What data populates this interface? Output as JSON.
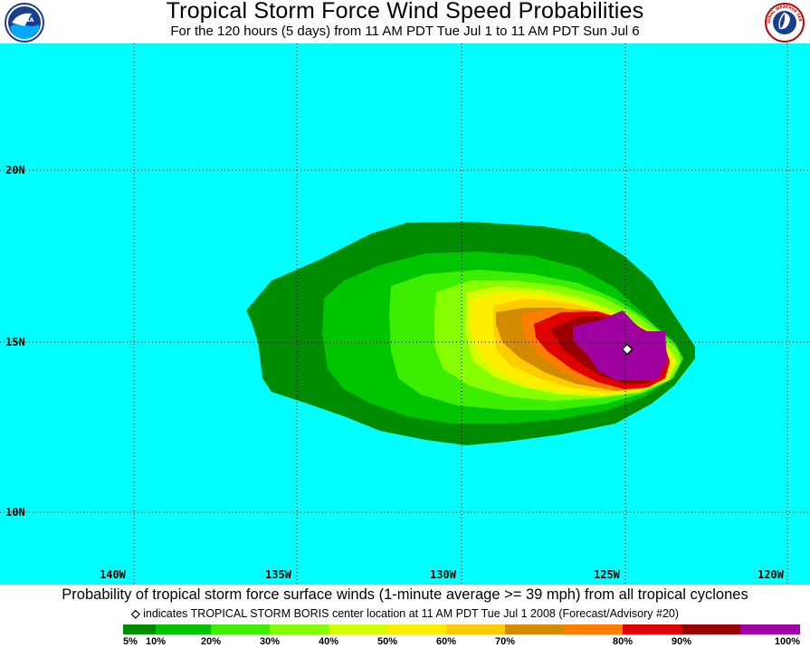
{
  "header": {
    "title": "Tropical Storm Force Wind Speed Probabilities",
    "subtitle": "For the 120 hours (5 days) from 11 AM PDT Tue Jul 1 to 11 AM PDT Sun Jul 6",
    "left_logo_text": "NOAA",
    "right_logo_text": "NATIONAL WEATHER SERVICE"
  },
  "map": {
    "ocean_color": "#00ffff",
    "latitude_labels": [
      "20N",
      "15N",
      "10N"
    ],
    "longitude_labels": [
      "140W",
      "135W",
      "130W",
      "125W",
      "120W"
    ],
    "storm_center": {
      "lon": -124.8,
      "lat": 14.8,
      "marker": "diamond"
    }
  },
  "footer": {
    "main": "Probability of tropical storm force surface winds (1-minute average >= 39 mph) from all tropical cyclones",
    "marker_symbol": "◇",
    "note": "indicates TROPICAL STORM BORIS center location at 11 AM PDT Tue Jul 1 2008 (Forecast/Advisory #20)"
  },
  "legend": {
    "colors": [
      "#008c00",
      "#00c400",
      "#3cee00",
      "#86ff00",
      "#d4ff00",
      "#ffee00",
      "#ffcc00",
      "#d28a00",
      "#ff7d00",
      "#e00000",
      "#9a0000",
      "#a000a0"
    ],
    "swatch_edges": [
      0,
      36,
      97,
      162,
      227,
      292,
      357,
      422,
      487,
      552,
      617,
      682,
      748
    ],
    "labels": [
      "5%",
      "10%",
      "20%",
      "30%",
      "40%",
      "50%",
      "60%",
      "70%",
      "80%",
      "90%",
      "100%"
    ],
    "label_edges": [
      0,
      36,
      97,
      162,
      227,
      292,
      357,
      422,
      552,
      617,
      748
    ]
  }
}
